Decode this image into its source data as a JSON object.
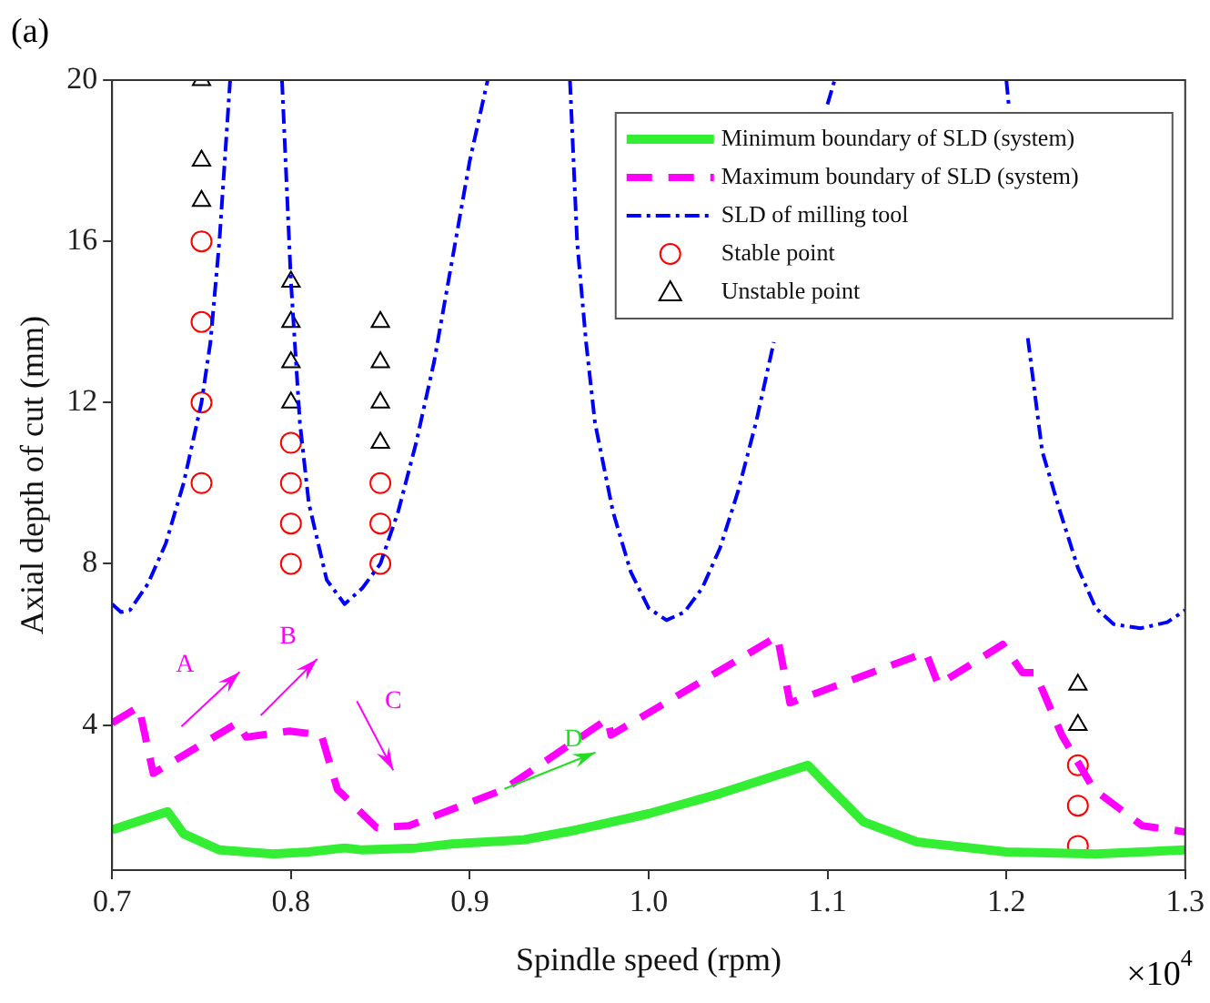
{
  "chart_data": {
    "type": "line",
    "xlabel": "Spindle speed (rpm)",
    "ylabel": "Axial depth of cut (mm)",
    "xlim": [
      0.7,
      1.3
    ],
    "xticks": [
      0.7,
      0.8,
      0.9,
      {
        "value": 1,
        "label": "1.0"
      },
      1.1,
      1.2,
      1.3
    ],
    "ylim": [
      0.4,
      20
    ],
    "yticks": [
      4,
      8,
      12,
      16,
      20
    ],
    "grid": false,
    "legend": "top right",
    "annotations": [
      "(a)",
      "×10$^{4}$",
      "A",
      "B",
      "C",
      "D"
    ],
    "series": [
      {
        "name": "Minimum boundary of SLD (system)",
        "type": "line",
        "line_style": "solid",
        "color": "#33ee33",
        "x": [
          0.7,
          0.731,
          0.74,
          0.76,
          0.79,
          0.81,
          0.83,
          0.84,
          0.87,
          0.89,
          0.93,
          0.96,
          1.0,
          1.04,
          1.089,
          1.1,
          1.12,
          1.15,
          1.2,
          1.25,
          1.3
        ],
        "values": [
          1.4,
          1.85,
          1.3,
          0.9,
          0.8,
          0.85,
          0.95,
          0.9,
          0.95,
          1.05,
          1.15,
          1.4,
          1.8,
          2.3,
          3.0,
          2.5,
          1.6,
          1.1,
          0.85,
          0.8,
          0.9
        ]
      },
      {
        "name": "Maximum boundary of SLD (system)",
        "type": "line",
        "line_style": "dashed",
        "color": "#ff00ff",
        "x": [
          0.7,
          0.715,
          0.723,
          0.77,
          0.775,
          0.799,
          0.817,
          0.826,
          0.848,
          0.866,
          0.919,
          0.977,
          0.979,
          1.072,
          1.079,
          1.155,
          1.162,
          1.198,
          1.209,
          1.216,
          1.231,
          1.249,
          1.276,
          1.3
        ],
        "values": [
          4.05,
          4.45,
          2.8,
          4.05,
          3.7,
          3.85,
          3.75,
          2.4,
          1.45,
          1.5,
          2.4,
          4.15,
          3.75,
          6.2,
          4.55,
          5.8,
          5.0,
          6.0,
          5.3,
          5.3,
          3.75,
          2.4,
          1.5,
          1.35
        ]
      },
      {
        "name": "SLD of milling tool",
        "type": "line",
        "line_style": "dashed",
        "color": "#0000ff",
        "x": [
          0.7,
          0.705,
          0.71,
          0.72,
          0.73,
          0.74,
          0.75,
          0.755,
          0.76,
          0.766,
          0.78,
          0.795,
          0.8,
          0.805,
          0.81,
          0.82,
          0.83,
          0.84,
          0.85,
          0.86,
          0.87,
          0.88,
          0.89,
          0.9,
          0.91,
          0.93,
          0.956,
          0.96,
          0.965,
          0.97,
          0.98,
          0.99,
          1.0,
          1.01,
          1.02,
          1.03,
          1.04,
          1.05,
          1.06,
          1.07,
          1.08,
          1.09,
          1.1,
          1.104,
          1.15,
          1.2,
          1.2015,
          1.205,
          1.212,
          1.22,
          1.23,
          1.24,
          1.25,
          1.26,
          1.275,
          1.29,
          1.3
        ],
        "values": [
          7.0,
          6.8,
          6.85,
          7.5,
          8.5,
          10,
          12,
          13.5,
          16,
          20,
          null,
          20,
          15,
          11.5,
          9.5,
          7.6,
          7.0,
          7.4,
          8.0,
          9.3,
          11,
          13,
          15.5,
          18,
          20,
          null,
          20,
          16,
          13.5,
          11.5,
          9.3,
          7.8,
          6.9,
          6.6,
          6.8,
          7.4,
          8.4,
          9.8,
          11.5,
          13.5,
          null,
          null,
          19.4,
          20,
          null,
          20,
          19.3,
          null,
          13.6,
          10.8,
          9.3,
          7.9,
          6.9,
          6.5,
          6.4,
          6.55,
          6.85
        ]
      },
      {
        "name": "Stable point",
        "type": "scatter",
        "marker": "circle",
        "color": "#ff0000",
        "x": [
          0.75,
          0.75,
          0.75,
          0.75,
          0.8,
          0.8,
          0.8,
          0.8,
          0.85,
          0.85,
          0.85,
          1.24,
          1.24,
          1.24
        ],
        "values": [
          16,
          14,
          12,
          10,
          11,
          10,
          9,
          8,
          10,
          9,
          8,
          3,
          2,
          1
        ]
      },
      {
        "name": "Unstable point",
        "type": "scatter",
        "marker": "triangle",
        "color": "#000000",
        "x": [
          0.75,
          0.75,
          0.75,
          0.8,
          0.8,
          0.8,
          0.8,
          0.85,
          0.85,
          0.85,
          0.85,
          1.24,
          1.24
        ],
        "values": [
          20,
          18,
          17,
          15,
          14,
          13,
          12,
          14,
          13,
          12,
          11,
          5,
          4
        ]
      }
    ]
  }
}
